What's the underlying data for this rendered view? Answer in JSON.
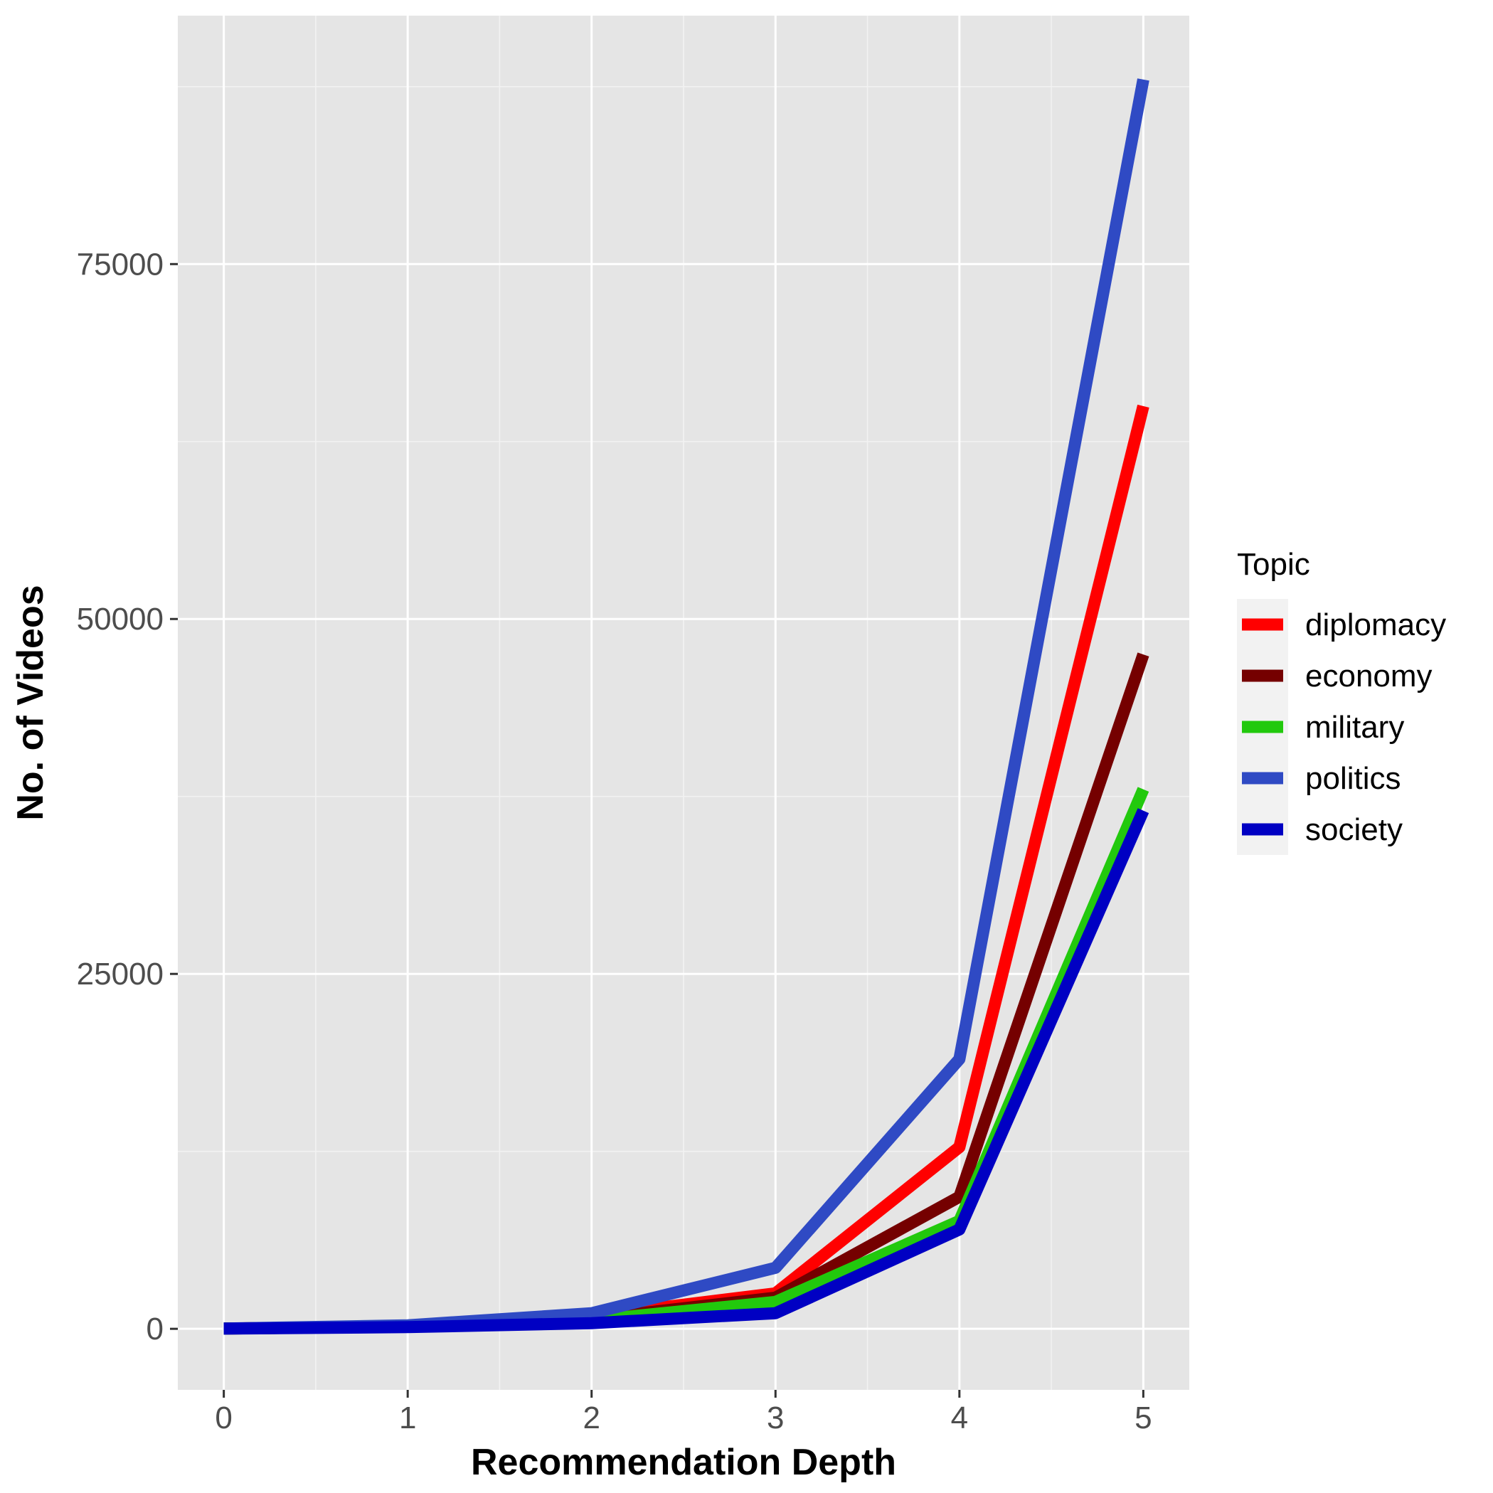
{
  "chart_data": {
    "type": "line",
    "xlabel": "Recommendation Depth",
    "ylabel": "No. of Videos",
    "x": [
      0,
      1,
      2,
      3,
      4,
      5
    ],
    "xlim": [
      -0.25,
      5.25
    ],
    "ylim": [
      -4300,
      92500
    ],
    "x_ticks": [
      "0",
      "1",
      "2",
      "3",
      "4",
      "5"
    ],
    "y_ticks": [
      0,
      25000,
      50000,
      75000
    ],
    "y_tick_labels": [
      "0",
      "25000",
      "50000",
      "75000"
    ],
    "grid": true,
    "legend": {
      "title": "Topic",
      "position": "right"
    },
    "background_color": "#e5e5e5",
    "grid_color": "#ffffff",
    "series": [
      {
        "name": "diplomacy",
        "color": "#ff0000",
        "values": [
          20,
          180,
          900,
          2500,
          12800,
          65000
        ]
      },
      {
        "name": "economy",
        "color": "#750000",
        "values": [
          20,
          160,
          700,
          2200,
          9300,
          47500
        ]
      },
      {
        "name": "military",
        "color": "#22c90d",
        "values": [
          20,
          150,
          600,
          1900,
          7600,
          38000
        ]
      },
      {
        "name": "politics",
        "color": "#2f4ac4",
        "values": [
          20,
          250,
          1100,
          4300,
          19000,
          88000
        ]
      },
      {
        "name": "society",
        "color": "#0000c3",
        "values": [
          15,
          120,
          400,
          1100,
          7000,
          36500
        ]
      }
    ]
  }
}
